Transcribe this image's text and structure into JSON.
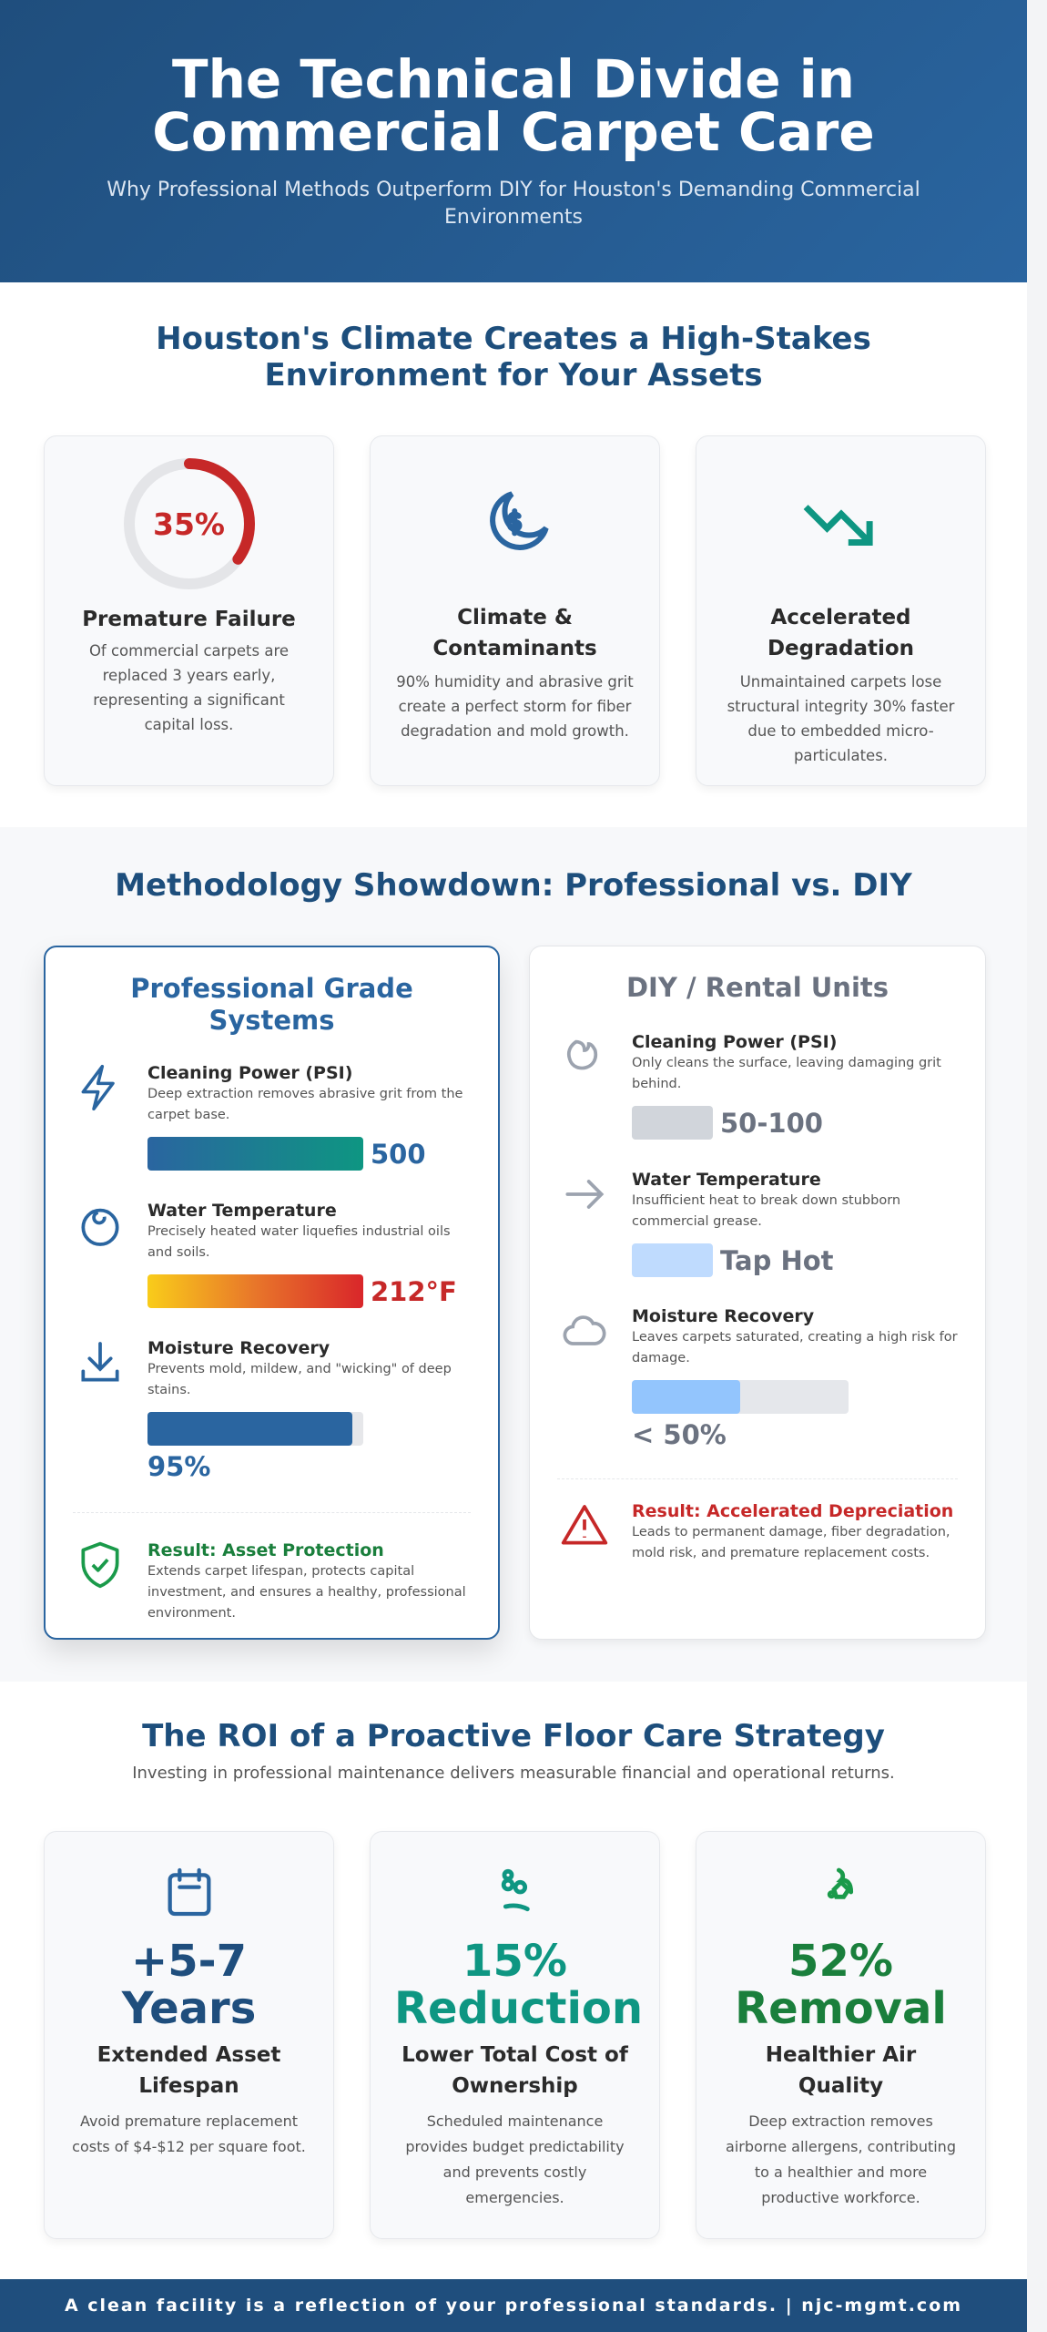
{
  "header": {
    "title_line1": "The Technical Divide in",
    "title_line2": "Commercial Carpet Care",
    "subtitle": "Why Professional Methods Outperform DIY for Houston's Demanding Commercial Environments"
  },
  "climate": {
    "title_line1": "Houston's Climate Creates a High-Stakes",
    "title_line2": "Environment for Your Assets",
    "cards": [
      {
        "stat": "35%",
        "stat_fraction": 0.35,
        "title": "Premature Failure",
        "text": "Of commercial carpets are replaced 3 years early, representing a significant capital loss.",
        "icon": "donut-gauge"
      },
      {
        "title": "Climate & Contaminants",
        "text": "90% humidity and abrasive grit create a perfect storm for fiber degradation and mold growth.",
        "icon": "moon-dollar-icon"
      },
      {
        "title": "Accelerated Degradation",
        "text": "Unmaintained carpets lose structural integrity 30% faster due to embedded micro-particulates.",
        "icon": "trending-down-icon"
      }
    ]
  },
  "showdown": {
    "title": "Methodology Showdown: Professional vs. DIY",
    "pro": {
      "heading": "Professional Grade Systems",
      "items": [
        {
          "title": "Cleaning Power (PSI)",
          "text": "Deep extraction removes abrasive grit from the carpet base.",
          "value": "500",
          "icon": "lightning-icon"
        },
        {
          "title": "Water Temperature",
          "text": "Precisely heated water liquefies industrial oils and soils.",
          "value": "212°F",
          "icon": "flame-icon"
        },
        {
          "title": "Moisture Recovery",
          "text": "Prevents mold, mildew, and \"wicking\" of deep stains.",
          "value": "95%",
          "fill": 0.95,
          "icon": "download-icon"
        }
      ],
      "result_title": "Result: Asset Protection",
      "result_text": "Extends carpet lifespan, protects capital investment, and ensures a healthy, professional environment."
    },
    "diy": {
      "heading": "DIY / Rental Units",
      "items": [
        {
          "title": "Cleaning Power (PSI)",
          "text": "Only cleans the surface, leaving damaging grit behind.",
          "value": "50-100",
          "icon": "weak-flame-icon"
        },
        {
          "title": "Water Temperature",
          "text": "Insufficient heat to break down stubborn commercial grease.",
          "value": "Tap Hot",
          "icon": "arrow-right-icon"
        },
        {
          "title": "Moisture Recovery",
          "text": "Leaves carpets saturated, creating a high risk for damage.",
          "value": "< 50%",
          "fill": 0.5,
          "icon": "cloud-icon"
        }
      ],
      "result_title": "Result: Accelerated Depreciation",
      "result_text": "Leads to permanent damage, fiber degradation, mold risk, and premature replacement costs."
    }
  },
  "roi": {
    "title": "The ROI of a Proactive Floor Care Strategy",
    "subtitle": "Investing in professional maintenance delivers measurable financial and operational returns.",
    "cards": [
      {
        "stat_line1": "+5-7",
        "stat_line2": "Years",
        "title": "Extended Asset Lifespan",
        "text": "Avoid premature replacement costs of $4-$12 per square foot.",
        "color": "#1f4e7d",
        "icon": "calendar-icon"
      },
      {
        "stat_line1": "15%",
        "stat_line2": "Reduction",
        "title": "Lower Total Cost of Ownership",
        "text": "Scheduled maintenance provides budget predictability and prevents costly emergencies.",
        "color": "#0e9682",
        "icon": "savings-icon"
      },
      {
        "stat_line1": "52%",
        "stat_line2": "Removal",
        "title": "Healthier Air Quality",
        "text": "Deep extraction removes airborne allergens, contributing to a healthier and more productive workforce.",
        "color": "#1a7f3c",
        "icon": "air-icon"
      }
    ]
  },
  "footer": {
    "text": "A clean facility is a reflection of your professional standards. | njc-mgmt.com"
  },
  "colors": {
    "primary": "#1f4e7d",
    "accent_blue": "#2a65a0",
    "danger": "#c62828",
    "success": "#1a7f3c",
    "teal": "#0e9682"
  }
}
